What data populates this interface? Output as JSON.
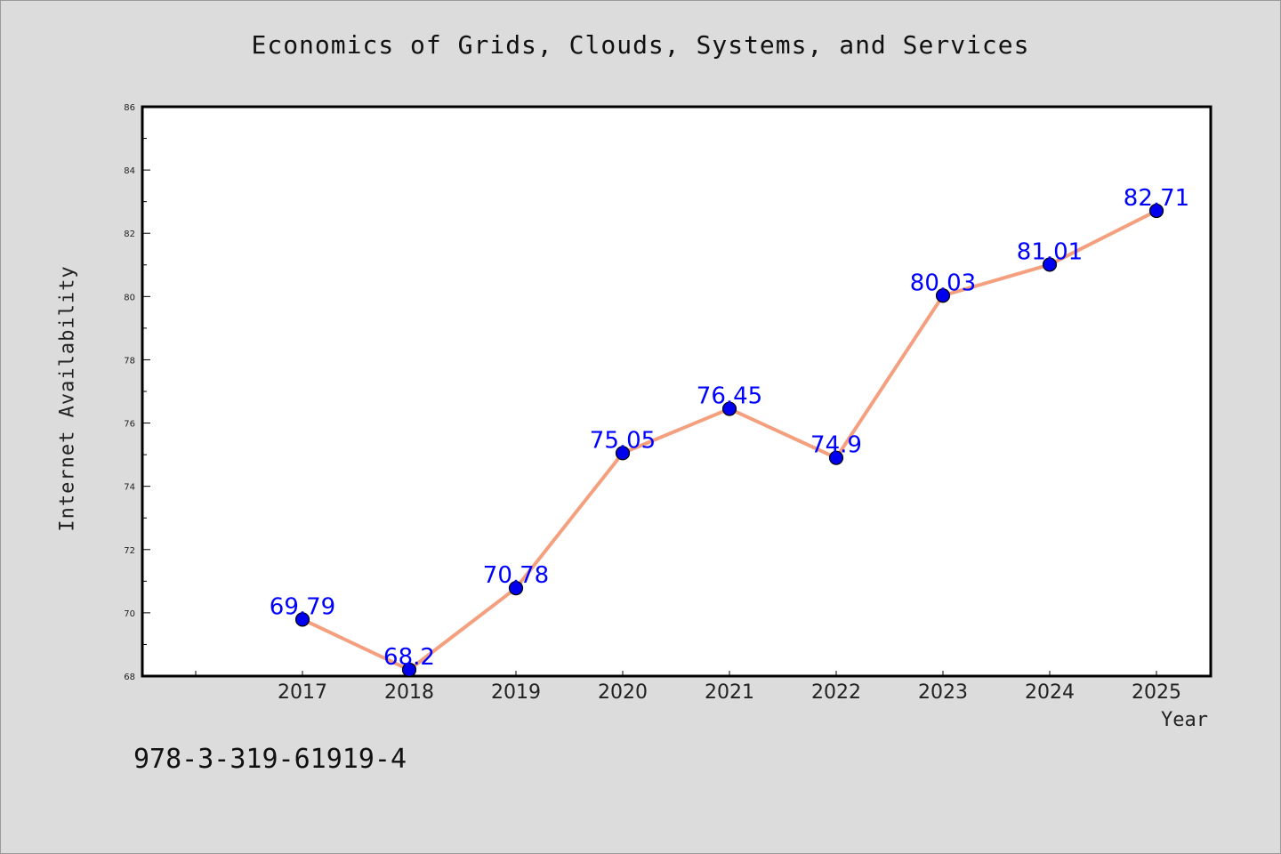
{
  "chart_data": {
    "type": "line",
    "title": "Economics of Grids, Clouds, Systems, and Services",
    "xlabel": "Year",
    "ylabel": "Internet Availability",
    "categories": [
      "2017",
      "2018",
      "2019",
      "2020",
      "2021",
      "2022",
      "2023",
      "2024",
      "2025"
    ],
    "values": [
      69.79,
      68.2,
      70.78,
      75.05,
      76.45,
      74.9,
      80.03,
      81.01,
      82.71
    ],
    "data_labels": [
      "69.79",
      "68.2",
      "70.78",
      "75.05",
      "76.45",
      "74.9",
      "80.03",
      "81.01",
      "82.71"
    ],
    "ylim": [
      68,
      86
    ],
    "yticks": [
      "68",
      "70",
      "72",
      "74",
      "76",
      "78",
      "80",
      "82",
      "84",
      "86"
    ],
    "grid": false,
    "line_color": "#f4a07f",
    "marker_color": "#0000ee",
    "label_color": "#0000ff"
  },
  "footer": {
    "isbn": "978-3-319-61919-4"
  }
}
